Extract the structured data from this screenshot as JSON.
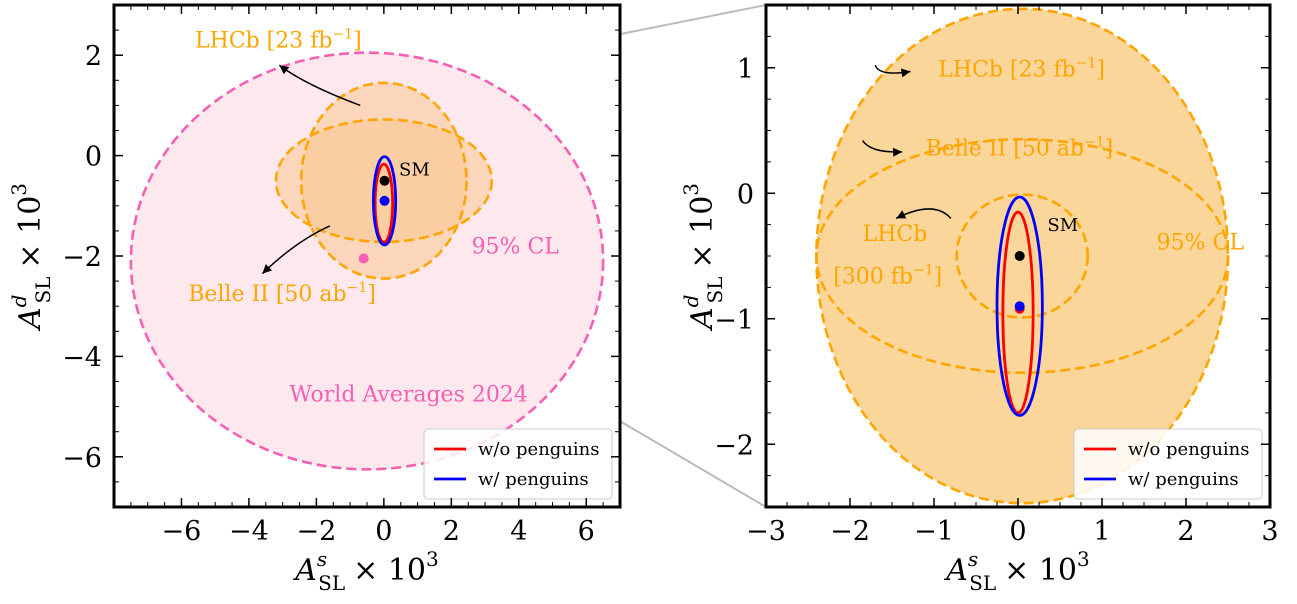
{
  "chart_data": [
    {
      "panel": "left",
      "type": "scatter",
      "xlabel": {
        "symbol": "A",
        "superscript": "s",
        "subscript": "SL",
        "factor": "× 10",
        "factor_exp": "3"
      },
      "ylabel": {
        "symbol": "A",
        "superscript": "d",
        "subscript": "SL",
        "factor": "× 10",
        "factor_exp": "3"
      },
      "xlim": [
        -8,
        7
      ],
      "ylim": [
        -7,
        3
      ],
      "xticks": [
        -6,
        -4,
        -2,
        0,
        2,
        4,
        6
      ],
      "yticks": [
        -6,
        -4,
        -2,
        0,
        2
      ],
      "xtick_labels": [
        "−6",
        "−4",
        "−2",
        "0",
        "2",
        "4",
        "6"
      ],
      "ytick_labels": [
        "−6",
        "−4",
        "−2",
        "0",
        "2"
      ],
      "grid": false,
      "legend_position": "bottom-right",
      "legend": [
        {
          "label": "w/o penguins",
          "color": "#ff0000"
        },
        {
          "label": "w/ penguins",
          "color": "#0000ff"
        }
      ],
      "regions": [
        {
          "name": "World Averages 2024",
          "type": "ellipse",
          "center": [
            -0.5,
            -2.1
          ],
          "radii": [
            7.0,
            4.15
          ],
          "fill": "#fde6ec",
          "stroke": "#f560b3",
          "dashed": true
        },
        {
          "name": "LHCb [23 fb⁻¹]",
          "type": "ellipse",
          "center": [
            0.0,
            -0.5
          ],
          "radii": [
            2.45,
            1.95
          ],
          "fill": "#f9c68f",
          "stroke": "#ffa500",
          "dashed": true
        },
        {
          "name": "Belle II [50 ab⁻¹]",
          "type": "ellipse",
          "center": [
            0.0,
            -0.5
          ],
          "radii": [
            3.2,
            1.22
          ],
          "fill": "#f9c68f",
          "stroke": "#ffa500",
          "dashed": true
        }
      ],
      "contours": [
        {
          "series": "w/o penguins",
          "center": [
            0.0,
            -0.95
          ],
          "radii": [
            0.26,
            0.78
          ],
          "color": "#ff0000"
        },
        {
          "series": "w/ penguins",
          "center": [
            0.02,
            -0.9
          ],
          "radii": [
            0.33,
            0.88
          ],
          "color": "#0000ff"
        }
      ],
      "points": [
        {
          "name": "SM",
          "x": 0.02,
          "y": -0.5,
          "color": "#000000"
        },
        {
          "name": "",
          "x": 0.02,
          "y": -0.9,
          "color": "#0000ff"
        },
        {
          "name": "",
          "x": -0.6,
          "y": -2.05,
          "color": "#f560b3"
        }
      ],
      "annotations": [
        {
          "text": "LHCb [23 fb",
          "sup": "−1",
          "close": "]",
          "x": -5.6,
          "y": 2.15,
          "color": "#ffa500"
        },
        {
          "text": "Belle II [50 ab",
          "sup": "−1",
          "close": "]",
          "x": -5.8,
          "y": -2.9,
          "color": "#ffa500"
        },
        {
          "text": "95% CL",
          "x": 2.6,
          "y": -1.95,
          "color": "#f560b3"
        },
        {
          "text": "World Averages 2024",
          "x": -2.8,
          "y": -4.9,
          "color": "#f560b3"
        },
        {
          "text": "SM",
          "x": 0.45,
          "y": -0.4,
          "color": "#000000"
        }
      ]
    },
    {
      "panel": "right",
      "type": "scatter",
      "xlabel": {
        "symbol": "A",
        "superscript": "s",
        "subscript": "SL",
        "factor": "× 10",
        "factor_exp": "3"
      },
      "ylabel": {
        "symbol": "A",
        "superscript": "d",
        "subscript": "SL",
        "factor": "× 10",
        "factor_exp": "3"
      },
      "xlim": [
        -3,
        3
      ],
      "ylim": [
        -2.5,
        1.5
      ],
      "xticks": [
        -3,
        -2,
        -1,
        0,
        1,
        2,
        3
      ],
      "yticks": [
        -2,
        -1,
        0,
        1
      ],
      "xtick_labels": [
        "−3",
        "−2",
        "−1",
        "0",
        "1",
        "2",
        "3"
      ],
      "ytick_labels": [
        "−2",
        "−1",
        "0",
        "1"
      ],
      "grid": false,
      "legend_position": "bottom-right",
      "legend": [
        {
          "label": "w/o penguins",
          "color": "#ff0000"
        },
        {
          "label": "w/ penguins",
          "color": "#0000ff"
        }
      ],
      "regions": [
        {
          "name": "LHCb [23 fb⁻¹]",
          "type": "ellipse",
          "center": [
            0.05,
            -0.5
          ],
          "radii": [
            2.45,
            1.97
          ],
          "fill": "#fbd28f",
          "stroke": "#ffa500",
          "dashed": true
        },
        {
          "name": "Belle II [50 ab⁻¹]",
          "type": "ellipse",
          "center": [
            0.05,
            -0.5
          ],
          "radii": [
            2.45,
            0.93
          ],
          "fill": "none",
          "stroke": "#ffa500",
          "dashed": true
        },
        {
          "name": "LHCb [300 fb⁻¹]",
          "type": "ellipse",
          "center": [
            0.05,
            -0.5
          ],
          "radii": [
            0.78,
            0.49
          ],
          "fill": "none",
          "stroke": "#ffa500",
          "dashed": true
        }
      ],
      "contours": [
        {
          "series": "w/o penguins",
          "center": [
            0.0,
            -0.95
          ],
          "radii": [
            0.18,
            0.8
          ],
          "color": "#ff0000"
        },
        {
          "series": "w/ penguins",
          "center": [
            0.02,
            -0.9
          ],
          "radii": [
            0.27,
            0.87
          ],
          "color": "#0000ff"
        }
      ],
      "points": [
        {
          "name": "SM",
          "x": 0.02,
          "y": -0.5,
          "color": "#000000"
        },
        {
          "name": "",
          "x": 0.02,
          "y": -0.92,
          "color": "#ff0000"
        },
        {
          "name": "",
          "x": 0.02,
          "y": -0.9,
          "color": "#0000ff"
        }
      ],
      "annotations": [
        {
          "text": "LHCb [23 fb",
          "sup": "−1",
          "close": "]",
          "x": -0.95,
          "y": 0.93,
          "color": "#ffa500"
        },
        {
          "text": "Belle II [50 ab",
          "sup": "−1",
          "close": "]",
          "x": -1.1,
          "y": 0.3,
          "color": "#ffa500"
        },
        {
          "text": "LHCb",
          "x": -1.85,
          "y": -0.38,
          "color": "#ffa500"
        },
        {
          "text": "[300 fb",
          "sup": "−1",
          "close": "]",
          "x": -2.2,
          "y": -0.72,
          "color": "#ffa500"
        },
        {
          "text": "95% CL",
          "x": 1.65,
          "y": -0.45,
          "color": "#ffa500"
        },
        {
          "text": "SM",
          "x": 0.35,
          "y": -0.3,
          "color": "#000000"
        }
      ]
    }
  ]
}
